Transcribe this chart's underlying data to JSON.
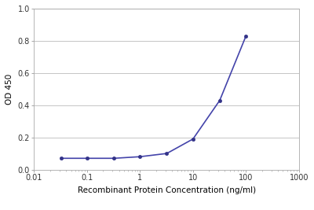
{
  "x_values": [
    0.032,
    0.1,
    0.32,
    1.0,
    3.2,
    10.0,
    32.0,
    100.0
  ],
  "y_values": [
    0.07,
    0.07,
    0.07,
    0.08,
    0.1,
    0.19,
    0.43,
    0.83
  ],
  "line_color": "#4444aa",
  "marker_color": "#333388",
  "marker_style": "o",
  "marker_size": 3,
  "line_width": 1.2,
  "xlabel": "Recombinant Protein Concentration (ng/ml)",
  "ylabel": "OD 450",
  "xlim": [
    0.01,
    1000
  ],
  "ylim": [
    0.0,
    1.0
  ],
  "yticks": [
    0.0,
    0.2,
    0.4,
    0.6,
    0.8,
    1.0
  ],
  "xticks": [
    0.01,
    0.1,
    1,
    10,
    100,
    1000
  ],
  "xtick_labels": [
    "0.01",
    "0.1",
    "1",
    "10",
    "100",
    "1000"
  ],
  "xlabel_fontsize": 7.5,
  "ylabel_fontsize": 7.5,
  "tick_fontsize": 7,
  "background_color": "#ffffff",
  "grid_color": "#bbbbbb"
}
